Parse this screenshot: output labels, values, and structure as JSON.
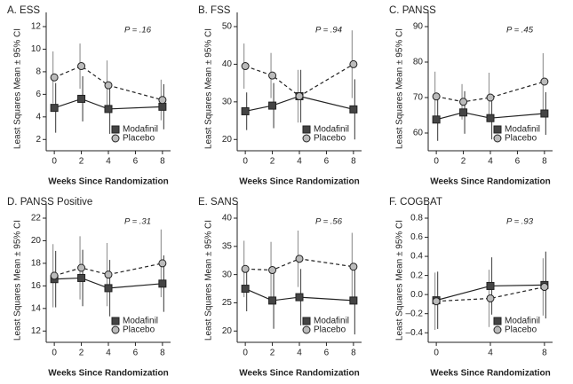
{
  "chart_data": [
    {
      "type": "line",
      "title": "A. ESS",
      "annotation": "P = .16",
      "xlabel": "Weeks Since Randomization",
      "ylabel": "Least Squares Mean ± 95% CI",
      "x": [
        0,
        2,
        4,
        8
      ],
      "xlim": [
        -0.6,
        8.6
      ],
      "xticks": [
        0,
        2,
        4,
        6,
        8
      ],
      "ylim": [
        1,
        12
      ],
      "yticks": [
        2,
        4,
        6,
        8,
        10,
        12
      ],
      "legend": "lower right",
      "series": [
        {
          "name": "Modafinil",
          "color": "#444444",
          "marker": "square",
          "linestyle": "solid",
          "values": [
            4.8,
            5.6,
            4.7,
            4.9
          ],
          "errors": [
            2.2,
            2.0,
            2.2,
            2.0
          ]
        },
        {
          "name": "Placebo",
          "color": "#bbbbbb",
          "marker": "circle",
          "linestyle": "dashed",
          "values": [
            7.5,
            8.5,
            6.8,
            5.5
          ],
          "errors": [
            2.3,
            2.0,
            2.2,
            1.8
          ]
        }
      ]
    },
    {
      "type": "line",
      "title": "B. FSS",
      "annotation": "P = .94",
      "xlabel": "Weeks Since Randomization",
      "ylabel": "Least Squares Mean ± 95% CI",
      "x": [
        0,
        2,
        4,
        8
      ],
      "xlim": [
        -0.6,
        8.6
      ],
      "xticks": [
        0,
        2,
        4,
        6,
        8
      ],
      "ylim": [
        17,
        50
      ],
      "yticks": [
        20,
        30,
        40,
        50
      ],
      "legend": "lower right",
      "series": [
        {
          "name": "Modafinil",
          "color": "#444444",
          "marker": "square",
          "linestyle": "solid",
          "values": [
            27.5,
            29,
            31.5,
            28
          ],
          "errors": [
            5,
            6,
            7,
            8
          ]
        },
        {
          "name": "Placebo",
          "color": "#bbbbbb",
          "marker": "circle",
          "linestyle": "dashed",
          "values": [
            39.5,
            37,
            31.5,
            40
          ],
          "errors": [
            6,
            6,
            7,
            9
          ]
        }
      ]
    },
    {
      "type": "line",
      "title": "C. PANSS",
      "annotation": "P = .45",
      "xlabel": "Weeks Since Randomization",
      "ylabel": "Least Squares Mean ± 95% CI",
      "x": [
        0,
        2,
        4,
        8
      ],
      "xlim": [
        -0.6,
        8.6
      ],
      "xticks": [
        0,
        2,
        4,
        6,
        8
      ],
      "ylim": [
        55,
        90
      ],
      "yticks": [
        60,
        70,
        80,
        90
      ],
      "legend": "lower right",
      "series": [
        {
          "name": "Modafinil",
          "color": "#444444",
          "marker": "square",
          "linestyle": "solid",
          "values": [
            63.8,
            65.8,
            64.2,
            65.5
          ],
          "errors": [
            6,
            6,
            6,
            6
          ]
        },
        {
          "name": "Placebo",
          "color": "#bbbbbb",
          "marker": "circle",
          "linestyle": "dashed",
          "values": [
            70.3,
            68.8,
            70,
            74.5
          ],
          "errors": [
            7,
            5,
            7,
            8
          ]
        }
      ]
    },
    {
      "type": "line",
      "title": "D. PANSS Positive",
      "annotation": "P = .31",
      "xlabel": "Weeks Since Randomization",
      "ylabel": "Least Squares Mean ± 95% CI",
      "x": [
        0,
        2,
        4,
        8
      ],
      "xlim": [
        -0.6,
        8.6
      ],
      "xticks": [
        0,
        2,
        4,
        6,
        8
      ],
      "ylim": [
        11,
        22
      ],
      "yticks": [
        12,
        14,
        16,
        18,
        20,
        22
      ],
      "legend": "lower right",
      "series": [
        {
          "name": "Modafinil",
          "color": "#444444",
          "marker": "square",
          "linestyle": "solid",
          "values": [
            16.6,
            16.7,
            15.8,
            16.2
          ],
          "errors": [
            2.5,
            2.5,
            2.5,
            2.5
          ]
        },
        {
          "name": "Placebo",
          "color": "#bbbbbb",
          "marker": "circle",
          "linestyle": "dashed",
          "values": [
            16.9,
            17.6,
            17.0,
            18.0
          ],
          "errors": [
            2.8,
            2.8,
            2.8,
            3
          ]
        }
      ]
    },
    {
      "type": "line",
      "title": "E. SANS",
      "annotation": "P = .56",
      "xlabel": "Weeks Since Randomization",
      "ylabel": "Least Squares Mean ± 95% CI",
      "x": [
        0,
        2,
        4,
        8
      ],
      "xlim": [
        -0.6,
        8.6
      ],
      "xticks": [
        0,
        2,
        4,
        6,
        8
      ],
      "ylim": [
        18,
        40
      ],
      "yticks": [
        20,
        25,
        30,
        35,
        40
      ],
      "legend": "lower right",
      "series": [
        {
          "name": "Modafinil",
          "color": "#444444",
          "marker": "square",
          "linestyle": "solid",
          "values": [
            27.5,
            25.4,
            26.0,
            25.4
          ],
          "errors": [
            4,
            5,
            5,
            6
          ]
        },
        {
          "name": "Placebo",
          "color": "#bbbbbb",
          "marker": "circle",
          "linestyle": "dashed",
          "values": [
            31,
            30.8,
            32.8,
            31.4
          ],
          "errors": [
            5,
            5,
            5,
            6
          ]
        }
      ]
    },
    {
      "type": "line",
      "title": "F. COGBAT",
      "annotation": "P = .93",
      "xlabel": "Weeks Since Randomization",
      "ylabel": "Least Squares Mean ± 95% CI",
      "x": [
        0,
        4,
        8
      ],
      "xlim": [
        -0.6,
        8.6
      ],
      "xticks": [
        0,
        4,
        8
      ],
      "ylim": [
        -0.5,
        0.8
      ],
      "yticks": [
        {
          "value": -0.4,
          "label": "–0.4"
        },
        {
          "value": -0.2,
          "label": "–0.2"
        },
        {
          "value": 0,
          "label": "0.0"
        },
        0.2,
        0.4,
        0.6,
        0.8
      ],
      "legend": "lower right",
      "series": [
        {
          "name": "Modafinil",
          "color": "#444444",
          "marker": "square",
          "linestyle": "solid",
          "values": [
            -0.06,
            0.09,
            0.1
          ],
          "errors": [
            0.3,
            0.3,
            0.35
          ]
        },
        {
          "name": "Placebo",
          "color": "#bbbbbb",
          "marker": "circle",
          "linestyle": "dashed",
          "values": [
            -0.07,
            -0.04,
            0.08
          ],
          "errors": [
            0.3,
            0.3,
            0.3
          ]
        }
      ]
    }
  ]
}
